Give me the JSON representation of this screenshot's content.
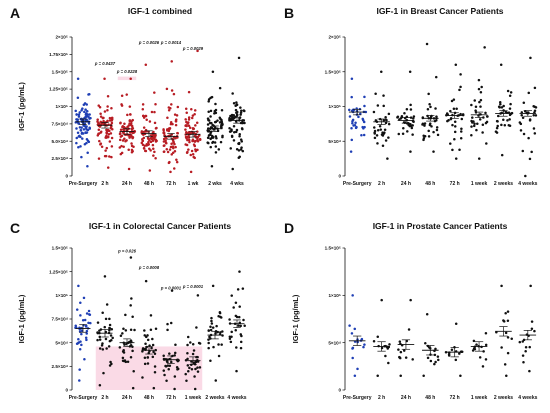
{
  "colors": {
    "pre": "#1f3fb5",
    "post": "#b81d24",
    "black": "#111111",
    "highlight": "#f5bcd2"
  },
  "chart_data": [
    {
      "type": "scatter",
      "panel": "A",
      "title": "IGF-1 combined",
      "ylabel": "IGF-1 (pg/mL)",
      "ylim": [
        0,
        200000
      ],
      "yticks": [
        0,
        25000,
        50000,
        75000,
        100000,
        125000,
        150000,
        175000,
        200000
      ],
      "ytick_labels": [
        "0",
        "2.5×10⁴",
        "5.0×10⁴",
        "7.5×10⁴",
        "1×10⁵",
        "1.25×10⁵",
        "1.5×10⁵",
        "1.75×10⁵",
        "2×10⁵"
      ],
      "categories": [
        "Pre-Surgery",
        "2 h",
        "24 h",
        "48 h",
        "72 h",
        "1 wk",
        "2 wks",
        "4 wks"
      ],
      "category_colors": [
        "pre",
        "post",
        "post",
        "post",
        "post",
        "post",
        "black",
        "black"
      ],
      "mean": [
        78000,
        73000,
        64000,
        61000,
        57000,
        60000,
        68000,
        80000
      ],
      "sem": [
        4000,
        4000,
        4000,
        4000,
        4000,
        4000,
        4000,
        4000
      ],
      "min": [
        14000,
        12000,
        10000,
        8000,
        6000,
        6000,
        14000,
        10000
      ],
      "max": [
        140000,
        140000,
        140000,
        160000,
        165000,
        180000,
        150000,
        170000
      ],
      "n": [
        90,
        85,
        80,
        80,
        80,
        80,
        75,
        72
      ],
      "annotations": [
        {
          "category": "2 h",
          "text": "p = 0.0437",
          "y": 160000
        },
        {
          "category": "24 h",
          "text": "p = 0.0228",
          "y": 148000
        },
        {
          "category": "48 h",
          "text": "p = 0.0026",
          "y": 190000
        },
        {
          "category": "72 h",
          "text": "p = 0.0014",
          "y": 190000
        },
        {
          "category": "1 wk",
          "text": "p = 0.0029",
          "y": 181000
        }
      ],
      "highlight_box": {
        "category": "24 h",
        "y": [
          138000,
          143000
        ]
      }
    },
    {
      "type": "scatter",
      "panel": "B",
      "title": "IGF-1 in Breast Cancer Patients",
      "ylabel": "",
      "ylim": [
        0,
        200000
      ],
      "yticks": [
        0,
        50000,
        100000,
        150000,
        200000
      ],
      "ytick_labels": [
        "0",
        "5×10⁴",
        "1×10⁵",
        "1.5×10⁵",
        "2×10⁵"
      ],
      "categories": [
        "Pre-Surgery",
        "2 h",
        "24 h",
        "48 h",
        "72 h",
        "1 week",
        "2 weeks",
        "4 weeks"
      ],
      "category_colors": [
        "pre",
        "black",
        "black",
        "black",
        "black",
        "black",
        "black",
        "black"
      ],
      "mean": [
        92000,
        78000,
        80000,
        83000,
        87000,
        88000,
        90000,
        90000
      ],
      "sem": [
        4000,
        4000,
        4000,
        4000,
        4000,
        4000,
        4000,
        4000
      ],
      "min": [
        35000,
        25000,
        35000,
        35000,
        25000,
        25000,
        30000,
        0
      ],
      "max": [
        140000,
        150000,
        150000,
        190000,
        160000,
        185000,
        160000,
        170000
      ],
      "n": [
        38,
        36,
        36,
        36,
        36,
        36,
        36,
        32
      ]
    },
    {
      "type": "scatter",
      "panel": "C",
      "title": "IGF-1 in Colorectal Cancer Patients",
      "ylabel": "IGF-1 (pg/mL)",
      "ylim": [
        0,
        150000
      ],
      "yticks": [
        0,
        25000,
        50000,
        75000,
        100000,
        125000,
        150000
      ],
      "ytick_labels": [
        "0",
        "2.5×10⁴",
        "5×10⁴",
        "7.5×10⁴",
        "1×10⁵",
        "1.25×10⁵",
        "1.5×10⁵"
      ],
      "categories": [
        "Pre-Surgery",
        "2 h",
        "24 h",
        "48 h",
        "72 h",
        "1 week",
        "2 weeks",
        "4 weeks"
      ],
      "category_colors": [
        "pre",
        "black",
        "black",
        "black",
        "black",
        "black",
        "black",
        "black"
      ],
      "mean": [
        65000,
        60000,
        50000,
        42000,
        32000,
        31000,
        58000,
        70000
      ],
      "sem": [
        4000,
        4000,
        4000,
        4000,
        4000,
        4000,
        4000,
        4000
      ],
      "min": [
        10000,
        5000,
        2000,
        2000,
        1000,
        1000,
        10000,
        20000
      ],
      "max": [
        110000,
        120000,
        140000,
        115000,
        105000,
        100000,
        110000,
        125000
      ],
      "n": [
        40,
        38,
        36,
        36,
        36,
        36,
        34,
        30
      ],
      "annotations": [
        {
          "category": "24 h",
          "text": "p = 0.026",
          "y": 145000
        },
        {
          "category": "48 h",
          "text": "p = 0.0008",
          "y": 128000
        },
        {
          "category": "72 h",
          "text": "p = 0.0001",
          "y": 106000
        },
        {
          "category": "1 week",
          "text": "p = 0.0001",
          "y": 108000
        }
      ],
      "highlight_box": {
        "category": "2 h",
        "x_to_category": "1 week",
        "y": [
          0,
          46000
        ]
      }
    },
    {
      "type": "scatter",
      "panel": "D",
      "title": "IGF-1 in Prostate Cancer Patients",
      "ylabel": "IGF-1 (pg/mL)",
      "ylim": [
        0,
        150000
      ],
      "yticks": [
        0,
        50000,
        100000,
        150000
      ],
      "ytick_labels": [
        "0",
        "5×10⁴",
        "1×10⁵",
        "1.5×10⁵"
      ],
      "categories": [
        "Pre-Surgery",
        "2 h",
        "24 h",
        "48 h",
        "72 h",
        "1 week",
        "2 weeks",
        "4 weeks"
      ],
      "category_colors": [
        "pre",
        "black",
        "black",
        "black",
        "black",
        "black",
        "black",
        "black"
      ],
      "mean": [
        52000,
        46000,
        48000,
        42000,
        40000,
        46000,
        62000,
        58000
      ],
      "sem": [
        5000,
        5000,
        5000,
        5000,
        5000,
        5000,
        5000,
        5000
      ],
      "min": [
        15000,
        15000,
        15000,
        15000,
        15000,
        25000,
        15000,
        20000
      ],
      "max": [
        100000,
        95000,
        95000,
        80000,
        70000,
        60000,
        110000,
        110000
      ],
      "n": [
        16,
        15,
        15,
        16,
        14,
        14,
        14,
        15
      ]
    }
  ]
}
